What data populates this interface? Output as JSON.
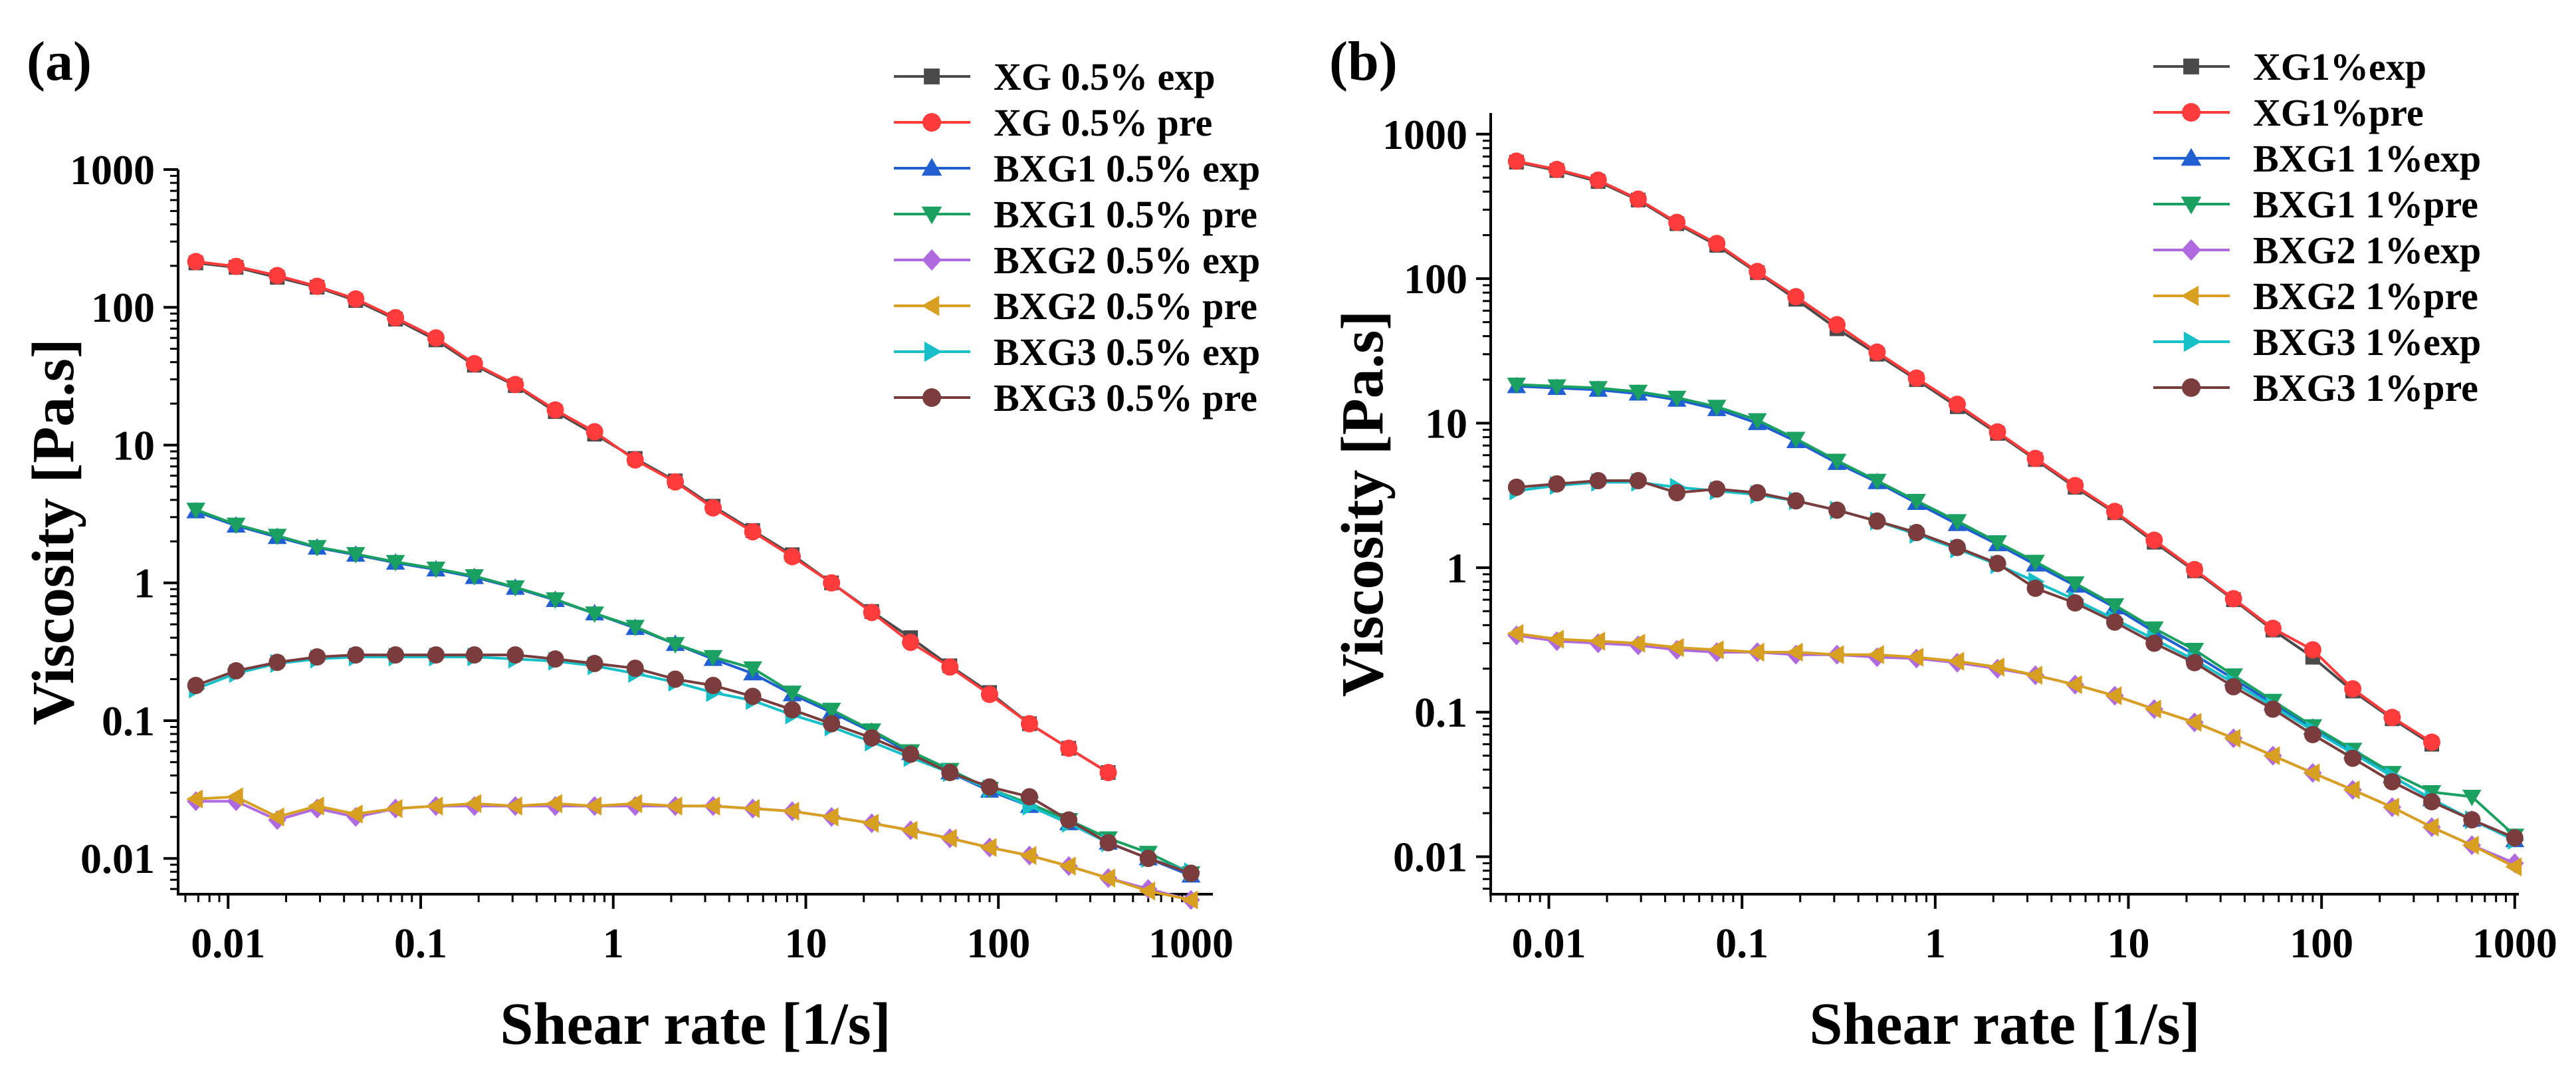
{
  "chart_data": [
    {
      "type": "line",
      "panel_label": "(a)",
      "xlabel": "Shear rate [1/s]",
      "ylabel": "Viscosity [Pa.s]",
      "xscale": "log",
      "yscale": "log",
      "xlim": [
        0.0055,
        1300
      ],
      "ylim": [
        0.0055,
        1000
      ],
      "xticks": [
        0.01,
        0.1,
        1,
        10,
        100,
        1000
      ],
      "xtick_labels": [
        "0.01",
        "0.1",
        "1",
        "10",
        "100",
        "1000"
      ],
      "yticks": [
        0.01,
        0.1,
        1,
        10,
        100,
        1000
      ],
      "ytick_labels": [
        "0.01",
        "0.1",
        "1",
        "10",
        "100",
        "1000"
      ],
      "legend_position": "top-right",
      "series": [
        {
          "name": "XG 0.5% exp",
          "color": "#4a4a4a",
          "marker": "square",
          "x": [
            0.0068,
            0.011,
            0.018,
            0.029,
            0.046,
            0.074,
            0.12,
            0.19,
            0.31,
            0.5,
            0.8,
            1.3,
            2.1,
            3.3,
            5.3,
            8.5,
            13.6,
            22,
            35,
            56,
            90,
            145,
            232,
            372
          ],
          "y": [
            210,
            195,
            165,
            140,
            112,
            82,
            58,
            38,
            27,
            17.5,
            12,
            8,
            5.5,
            3.6,
            2.4,
            1.6,
            1.0,
            0.62,
            0.4,
            0.25,
            0.16,
            0.095,
            0.063,
            0.042
          ]
        },
        {
          "name": "XG 0.5% pre",
          "color": "#ff3b3b",
          "marker": "circle",
          "x": [
            0.0068,
            0.011,
            0.018,
            0.029,
            0.046,
            0.074,
            0.12,
            0.19,
            0.31,
            0.5,
            0.8,
            1.3,
            2.1,
            3.3,
            5.3,
            8.5,
            13.6,
            22,
            35,
            56,
            90,
            145,
            232,
            372
          ],
          "y": [
            215,
            198,
            170,
            142,
            115,
            84,
            60,
            39,
            27.5,
            18,
            12.5,
            7.8,
            5.4,
            3.5,
            2.35,
            1.55,
            1.0,
            0.61,
            0.37,
            0.245,
            0.155,
            0.095,
            0.063,
            0.042
          ]
        },
        {
          "name": "BXG1 0.5% exp",
          "color": "#1f5fd1",
          "marker": "triangle-up",
          "x": [
            0.0068,
            0.011,
            0.018,
            0.029,
            0.046,
            0.074,
            0.12,
            0.19,
            0.31,
            0.5,
            0.8,
            1.3,
            2.1,
            3.3,
            5.3,
            8.5,
            13.6,
            22,
            35,
            56,
            90,
            145,
            232,
            372,
            600,
            1000
          ],
          "y": [
            3.3,
            2.6,
            2.15,
            1.8,
            1.6,
            1.4,
            1.25,
            1.1,
            0.92,
            0.75,
            0.6,
            0.47,
            0.36,
            0.28,
            0.22,
            0.155,
            0.115,
            0.083,
            0.058,
            0.042,
            0.031,
            0.024,
            0.018,
            0.013,
            0.01,
            0.0075
          ]
        },
        {
          "name": "BXG1 0.5% pre",
          "color": "#1aa060",
          "marker": "triangle-down",
          "x": [
            0.0068,
            0.011,
            0.018,
            0.029,
            0.046,
            0.074,
            0.12,
            0.19,
            0.31,
            0.5,
            0.8,
            1.3,
            2.1,
            3.3,
            5.3,
            8.5,
            13.6,
            22,
            35,
            56,
            90,
            145,
            232,
            372,
            600,
            1000
          ],
          "y": [
            3.4,
            2.65,
            2.2,
            1.82,
            1.62,
            1.42,
            1.27,
            1.12,
            0.93,
            0.76,
            0.6,
            0.48,
            0.36,
            0.29,
            0.24,
            0.16,
            0.12,
            0.085,
            0.06,
            0.044,
            0.032,
            0.025,
            0.019,
            0.014,
            0.011,
            0.0078
          ]
        },
        {
          "name": "BXG2 0.5% exp",
          "color": "#b06ae0",
          "marker": "diamond",
          "x": [
            0.0068,
            0.011,
            0.018,
            0.029,
            0.046,
            0.074,
            0.12,
            0.19,
            0.31,
            0.5,
            0.8,
            1.3,
            2.1,
            3.3,
            5.3,
            8.5,
            13.6,
            22,
            35,
            56,
            90,
            145,
            232,
            372,
            600,
            1000
          ],
          "y": [
            0.026,
            0.026,
            0.019,
            0.023,
            0.02,
            0.023,
            0.024,
            0.024,
            0.024,
            0.024,
            0.024,
            0.024,
            0.024,
            0.024,
            0.023,
            0.022,
            0.02,
            0.018,
            0.016,
            0.014,
            0.012,
            0.0105,
            0.0088,
            0.0072,
            0.006,
            0.005
          ]
        },
        {
          "name": "BXG2 0.5% pre",
          "color": "#d8a020",
          "marker": "triangle-left",
          "x": [
            0.0068,
            0.011,
            0.018,
            0.029,
            0.046,
            0.074,
            0.12,
            0.19,
            0.31,
            0.5,
            0.8,
            1.3,
            2.1,
            3.3,
            5.3,
            8.5,
            13.6,
            22,
            35,
            56,
            90,
            145,
            232,
            372,
            600,
            1000
          ],
          "y": [
            0.027,
            0.028,
            0.02,
            0.024,
            0.021,
            0.023,
            0.024,
            0.025,
            0.024,
            0.025,
            0.024,
            0.025,
            0.024,
            0.024,
            0.023,
            0.022,
            0.02,
            0.018,
            0.016,
            0.014,
            0.012,
            0.0105,
            0.0088,
            0.0072,
            0.0058,
            0.005
          ]
        },
        {
          "name": "BXG3 0.5% exp",
          "color": "#15c0c8",
          "marker": "triangle-right",
          "x": [
            0.0068,
            0.011,
            0.018,
            0.029,
            0.046,
            0.074,
            0.12,
            0.19,
            0.31,
            0.5,
            0.8,
            1.3,
            2.1,
            3.3,
            5.3,
            8.5,
            13.6,
            22,
            35,
            56,
            90,
            145,
            232,
            372,
            600,
            1000
          ],
          "y": [
            0.17,
            0.22,
            0.26,
            0.28,
            0.29,
            0.29,
            0.29,
            0.29,
            0.28,
            0.27,
            0.25,
            0.22,
            0.19,
            0.16,
            0.14,
            0.11,
            0.09,
            0.07,
            0.054,
            0.042,
            0.032,
            0.024,
            0.018,
            0.013,
            0.01,
            0.008
          ]
        },
        {
          "name": "BXG3 0.5% pre",
          "color": "#7a3c3c",
          "marker": "circle",
          "x": [
            0.0068,
            0.011,
            0.018,
            0.029,
            0.046,
            0.074,
            0.12,
            0.19,
            0.31,
            0.5,
            0.8,
            1.3,
            2.1,
            3.3,
            5.3,
            8.5,
            13.6,
            22,
            35,
            56,
            90,
            145,
            232,
            372,
            600,
            1000
          ],
          "y": [
            0.18,
            0.23,
            0.265,
            0.29,
            0.3,
            0.3,
            0.3,
            0.3,
            0.3,
            0.28,
            0.26,
            0.24,
            0.2,
            0.18,
            0.15,
            0.12,
            0.095,
            0.075,
            0.057,
            0.042,
            0.033,
            0.028,
            0.019,
            0.013,
            0.01,
            0.0078
          ]
        }
      ]
    },
    {
      "type": "line",
      "panel_label": "(b)",
      "xlabel": "Shear rate [1/s]",
      "ylabel": "Viscosity [Pa.s]",
      "xscale": "log",
      "yscale": "log",
      "xlim": [
        0.005,
        1050
      ],
      "ylim": [
        0.0055,
        1400
      ],
      "xticks": [
        0.01,
        0.1,
        1,
        10,
        100,
        1000
      ],
      "xtick_labels": [
        "0.01",
        "0.1",
        "1",
        "10",
        "100",
        "1000"
      ],
      "yticks": [
        0.01,
        0.1,
        1,
        10,
        100,
        1000
      ],
      "ytick_labels": [
        "0.01",
        "0.1",
        "1",
        "10",
        "100",
        "1000"
      ],
      "legend_position": "top-right",
      "series": [
        {
          "name": "XG1%exp",
          "color": "#4a4a4a",
          "marker": "square",
          "x": [
            0.0068,
            0.011,
            0.018,
            0.029,
            0.046,
            0.074,
            0.12,
            0.19,
            0.31,
            0.5,
            0.8,
            1.3,
            2.1,
            3.3,
            5.3,
            8.5,
            13.6,
            22,
            35,
            56,
            90,
            145,
            232,
            372
          ],
          "y": [
            640,
            560,
            470,
            350,
            240,
            170,
            110,
            72,
            45,
            30,
            20,
            13,
            8.5,
            5.6,
            3.6,
            2.4,
            1.5,
            0.95,
            0.6,
            0.37,
            0.24,
            0.14,
            0.09,
            0.06
          ]
        },
        {
          "name": "XG1%pre",
          "color": "#ff3b3b",
          "marker": "circle",
          "x": [
            0.0068,
            0.011,
            0.018,
            0.029,
            0.046,
            0.074,
            0.12,
            0.19,
            0.31,
            0.5,
            0.8,
            1.3,
            2.1,
            3.3,
            5.3,
            8.5,
            13.6,
            22,
            35,
            56,
            90,
            145,
            232,
            372
          ],
          "y": [
            650,
            570,
            480,
            355,
            245,
            175,
            112,
            75,
            48,
            31,
            20.5,
            13.5,
            8.7,
            5.7,
            3.7,
            2.45,
            1.55,
            0.97,
            0.61,
            0.38,
            0.27,
            0.145,
            0.092,
            0.062
          ]
        },
        {
          "name": "BXG1 1%exp",
          "color": "#1f5fd1",
          "marker": "triangle-up",
          "x": [
            0.0068,
            0.011,
            0.018,
            0.029,
            0.046,
            0.074,
            0.12,
            0.19,
            0.31,
            0.5,
            0.8,
            1.3,
            2.1,
            3.3,
            5.3,
            8.5,
            13.6,
            22,
            35,
            56,
            90,
            145,
            232,
            372,
            600,
            1000
          ],
          "y": [
            18,
            17.5,
            17,
            16,
            14.5,
            12.5,
            10,
            7.5,
            5.3,
            3.9,
            2.8,
            2.0,
            1.45,
            1.05,
            0.75,
            0.53,
            0.36,
            0.25,
            0.17,
            0.115,
            0.078,
            0.053,
            0.036,
            0.025,
            0.018,
            0.013
          ]
        },
        {
          "name": "BXG1 1%pre",
          "color": "#1aa060",
          "marker": "triangle-down",
          "x": [
            0.0068,
            0.011,
            0.018,
            0.029,
            0.046,
            0.074,
            0.12,
            0.19,
            0.31,
            0.5,
            0.8,
            1.3,
            2.1,
            3.3,
            5.3,
            8.5,
            13.6,
            22,
            35,
            56,
            90,
            145,
            232,
            372,
            600,
            1000
          ],
          "y": [
            18.5,
            18,
            17.5,
            16.5,
            15,
            13,
            10.5,
            7.8,
            5.5,
            4.0,
            2.9,
            2.1,
            1.5,
            1.1,
            0.78,
            0.55,
            0.38,
            0.27,
            0.18,
            0.12,
            0.08,
            0.055,
            0.038,
            0.028,
            0.026,
            0.014
          ]
        },
        {
          "name": "BXG2 1%exp",
          "color": "#b06ae0",
          "marker": "diamond",
          "x": [
            0.0068,
            0.011,
            0.018,
            0.029,
            0.046,
            0.074,
            0.12,
            0.19,
            0.31,
            0.5,
            0.8,
            1.3,
            2.1,
            3.3,
            5.3,
            8.5,
            13.6,
            22,
            35,
            56,
            90,
            145,
            232,
            372,
            600,
            1000
          ],
          "y": [
            0.34,
            0.31,
            0.3,
            0.29,
            0.27,
            0.26,
            0.26,
            0.25,
            0.25,
            0.24,
            0.235,
            0.22,
            0.2,
            0.18,
            0.155,
            0.13,
            0.105,
            0.085,
            0.066,
            0.05,
            0.038,
            0.029,
            0.022,
            0.016,
            0.012,
            0.009
          ]
        },
        {
          "name": "BXG2 1%pre",
          "color": "#d8a020",
          "marker": "triangle-left",
          "x": [
            0.0068,
            0.011,
            0.018,
            0.029,
            0.046,
            0.074,
            0.12,
            0.19,
            0.31,
            0.5,
            0.8,
            1.3,
            2.1,
            3.3,
            5.3,
            8.5,
            13.6,
            22,
            35,
            56,
            90,
            145,
            232,
            372,
            600,
            1000
          ],
          "y": [
            0.35,
            0.32,
            0.31,
            0.3,
            0.28,
            0.27,
            0.26,
            0.26,
            0.25,
            0.25,
            0.24,
            0.225,
            0.205,
            0.18,
            0.155,
            0.13,
            0.105,
            0.085,
            0.066,
            0.05,
            0.038,
            0.029,
            0.022,
            0.016,
            0.012,
            0.0085
          ]
        },
        {
          "name": "BXG3 1%exp",
          "color": "#15c0c8",
          "marker": "triangle-right",
          "x": [
            0.0068,
            0.011,
            0.018,
            0.029,
            0.046,
            0.074,
            0.12,
            0.19,
            0.31,
            0.5,
            0.8,
            1.3,
            2.1,
            3.3,
            5.3,
            8.5,
            13.6,
            22,
            35,
            56,
            90,
            145,
            232,
            372,
            600,
            1000
          ],
          "y": [
            3.4,
            3.7,
            3.9,
            3.9,
            3.6,
            3.4,
            3.2,
            2.9,
            2.5,
            2.1,
            1.7,
            1.35,
            1.05,
            0.8,
            0.6,
            0.44,
            0.32,
            0.23,
            0.16,
            0.11,
            0.075,
            0.052,
            0.036,
            0.025,
            0.018,
            0.013
          ]
        },
        {
          "name": "BXG3 1%pre",
          "color": "#7a3c3c",
          "marker": "circle",
          "x": [
            0.0068,
            0.011,
            0.018,
            0.029,
            0.046,
            0.074,
            0.12,
            0.19,
            0.31,
            0.5,
            0.8,
            1.3,
            2.1,
            3.3,
            5.3,
            8.5,
            13.6,
            22,
            35,
            56,
            90,
            145,
            232,
            372,
            600,
            1000
          ],
          "y": [
            3.6,
            3.8,
            4.0,
            4.0,
            3.3,
            3.5,
            3.3,
            2.9,
            2.5,
            2.1,
            1.75,
            1.38,
            1.07,
            0.72,
            0.57,
            0.42,
            0.3,
            0.22,
            0.15,
            0.105,
            0.07,
            0.048,
            0.033,
            0.024,
            0.018,
            0.0135
          ]
        }
      ]
    }
  ]
}
